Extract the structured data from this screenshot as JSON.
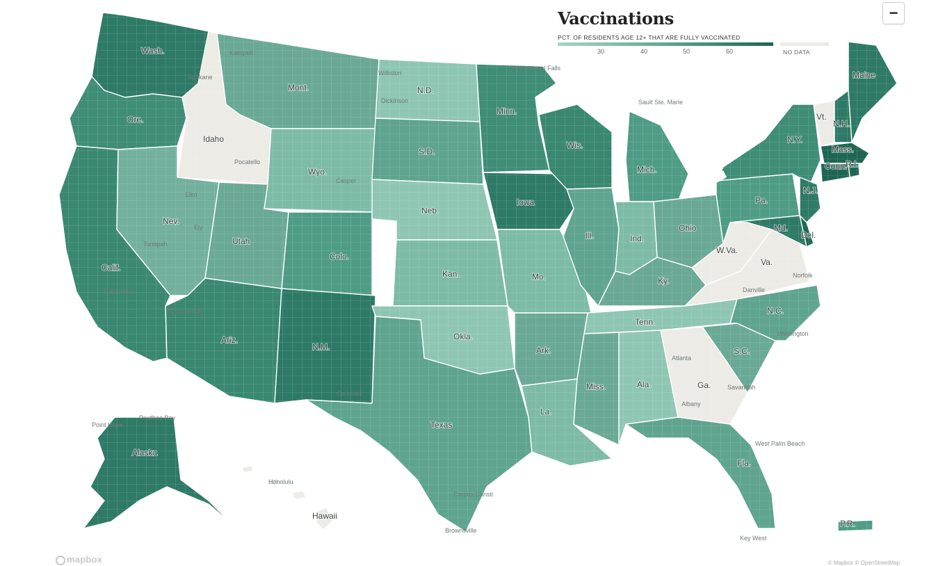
{
  "legend": {
    "title": "Vaccinations",
    "caption": "PCT. OF RESIDENTS AGE 12+ THAT ARE FULLY VACCINATED",
    "ticks": [
      "30",
      "40",
      "50",
      "60"
    ],
    "no_data_label": "NO DATA",
    "colors": {
      "low": "#a7d4c4",
      "mid_low": "#7dbba6",
      "mid": "#4f9c86",
      "high": "#2e7a66",
      "highest": "#1e6654",
      "no_data": "#ecebe5"
    }
  },
  "controls": {
    "zoom_out": "−"
  },
  "map": {
    "no_data_states": [
      "Idaho",
      "W.Va.",
      "Va.",
      "Ga.",
      "Vt."
    ],
    "state_labels": {
      "wash": "Wash.",
      "ore": "Ore.",
      "idaho": "Idaho",
      "mont": "Mont.",
      "nd": "N.D.",
      "minn": "Minn.",
      "sd": "S.D.",
      "wyo": "Wyo.",
      "nev": "Nev.",
      "calif": "Calif.",
      "utah": "Utah",
      "colo": "Colo.",
      "neb": "Neb.",
      "iowa": "Iowa",
      "wis": "Wis.",
      "mich": "Mich.",
      "ill": "Ill.",
      "ind": "Ind.",
      "ohio": "Ohio",
      "pa": "Pa.",
      "ny": "N.Y.",
      "vt": "Vt.",
      "nh": "N.H.",
      "maine": "Maine",
      "mass": "Mass.",
      "conn": "Conn.",
      "ri": "R.I.",
      "nj": "N.J.",
      "md": "Md.",
      "del": "Del.",
      "wva": "W.Va.",
      "va": "Va.",
      "ky": "Ky.",
      "mo": "Mo.",
      "kan": "Kan.",
      "ariz": "Ariz.",
      "nm": "N.M.",
      "okla": "Okla.",
      "texas": "Texas",
      "ark": "Ark.",
      "tenn": "Tenn.",
      "nc": "N.C.",
      "sc": "S.C.",
      "ga": "Ga.",
      "ala": "Ala.",
      "miss": "Miss.",
      "la": "La.",
      "fla": "Fla.",
      "alaska": "Alaska",
      "hawaii": "Hawaii",
      "pr": "P.R."
    },
    "city_labels": {
      "spokane": "Spokane",
      "pocatello": "Pocatello",
      "elko": "Elko",
      "ely": "Ely",
      "tonopah": "Tonopah",
      "sacramento": "Sacramento",
      "bullhead": "Bullhead City",
      "atlanta": "Atlanta",
      "albany": "Albany",
      "savannah": "Savannah",
      "danville": "Danville",
      "norfolk": "Norfolk",
      "wilmington": "Wilmington",
      "prudhoe": "Prudhoe Bay",
      "pointhope": "Point Hope",
      "honolulu": "Honolulu",
      "saultstemarie": "Sault Ste. Marie",
      "carlsbad": "Carlsbad",
      "internationalfalls": "International Falls",
      "dickinson": "Dickinson",
      "williston": "Williston",
      "kalispell": "Kalispell",
      "missoula": "Missoula",
      "caspar": "Casper",
      "bakersfield": "Bakersfield",
      "amarillo": "Amarillo",
      "corpuschristi": "Corpus Christi",
      "brownsville": "Brownsville",
      "keywest": "Key West",
      "westpalm": "West Palm Beach"
    }
  },
  "footer": {
    "mapbox": "mapbox",
    "attribution": "© Mapbox © OpenStreetMap"
  }
}
